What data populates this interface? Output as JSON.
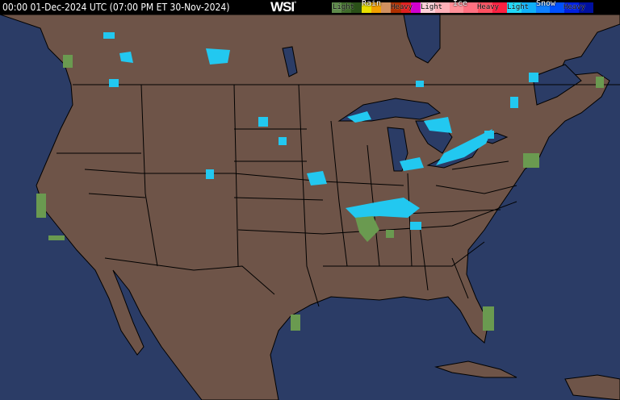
{
  "header": {
    "timestamp": "00:00 01-Dec-2024 UTC  (07:00 PM ET 30-Nov-2024)",
    "logo": "WSI"
  },
  "legend": {
    "rain": {
      "title": "Rain",
      "light": "Light",
      "heavy": "Heavy",
      "colors": [
        "#5e8a4a",
        "#3f6a2a",
        "#2a5018",
        "#e8e000",
        "#f0a000",
        "#d09060",
        "#b03000",
        "#e02020",
        "#d000d0"
      ]
    },
    "ice": {
      "title": "Ice",
      "light": "Light",
      "heavy": "Heavy",
      "colors": [
        "#ffd0d8",
        "#ffb0b8",
        "#ff9098",
        "#ff7080",
        "#ff5060",
        "#ff2040"
      ]
    },
    "snow": {
      "title": "Snow",
      "light": "Light",
      "heavy": "Heavy",
      "colors": [
        "#20d8f8",
        "#10b0f8",
        "#1080ff",
        "#0050ff",
        "#0020e0",
        "#0010a0"
      ]
    }
  },
  "colors": {
    "land": "#6e5448",
    "water": "#2b3c66",
    "borders": "#000000",
    "snow_light": "#22c8f0",
    "rain_light": "#6a9a50"
  }
}
